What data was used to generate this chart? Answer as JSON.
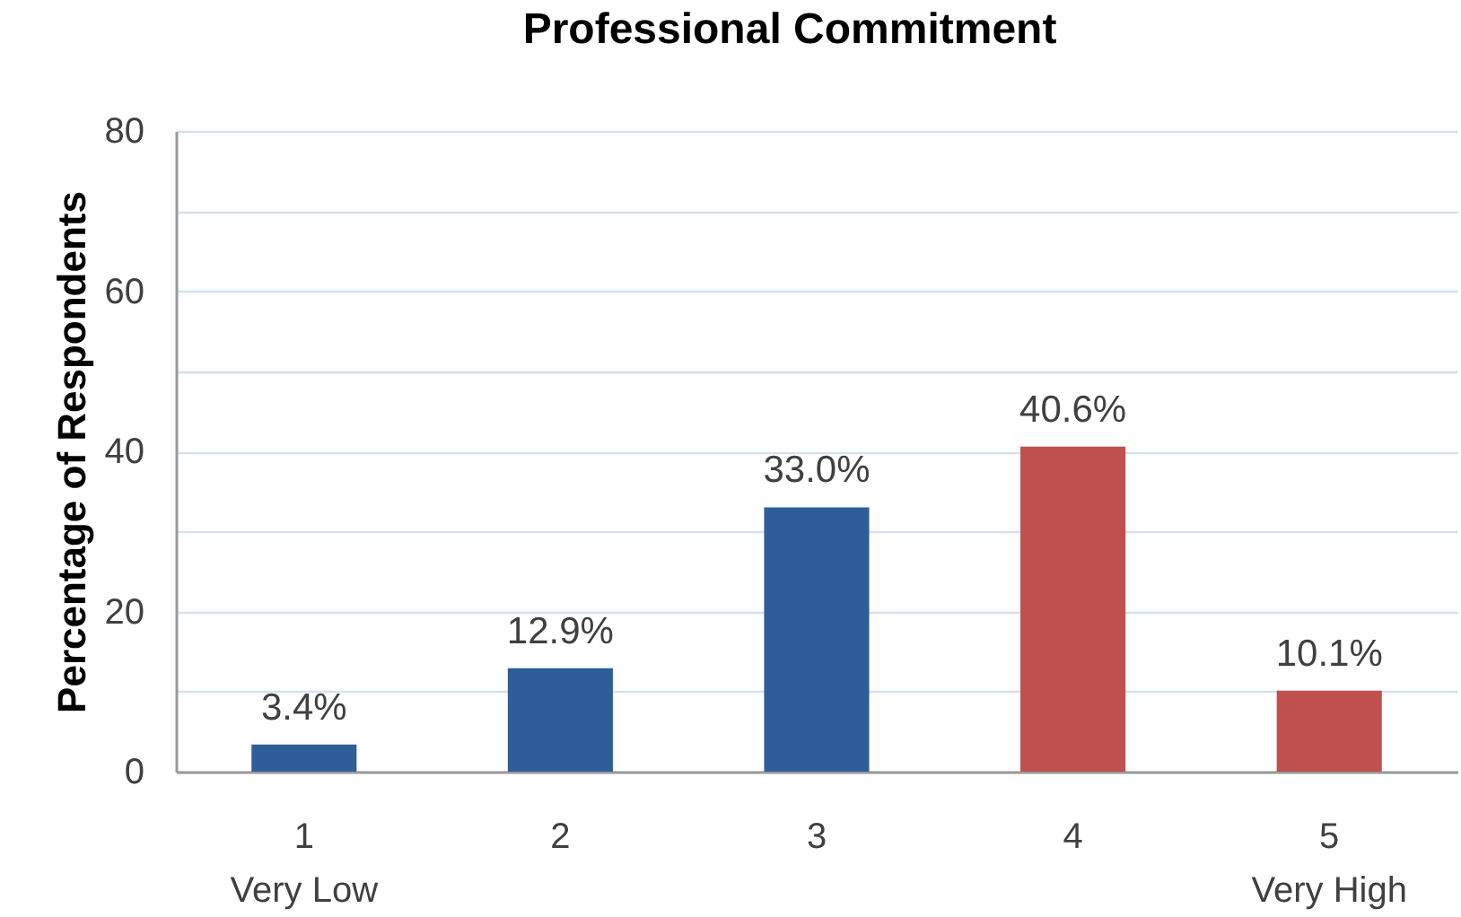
{
  "chart_data": {
    "type": "bar",
    "title": "Professional Commitment",
    "ylabel": "Percentage of Respondents",
    "categories": [
      "1\nVery Low",
      "2",
      "3",
      "4",
      "5\nVery High"
    ],
    "values": [
      3.4,
      12.9,
      33.0,
      40.6,
      10.1
    ],
    "colors": [
      "#2e5e98",
      "#2e5e98",
      "#2e5e98",
      "#c0504d",
      "#c0504d"
    ],
    "value_labels": [
      "3.4%",
      "12.9%",
      "33.0%",
      "40.6%",
      "10.1%"
    ],
    "ylim": [
      0,
      80
    ],
    "yticks": [
      0,
      {
        "value": 10,
        "label": null
      },
      20,
      {
        "value": 30,
        "label": null
      },
      40,
      {
        "value": 50,
        "label": null
      },
      60,
      {
        "value": 70,
        "label": null
      },
      80
    ],
    "grid": true
  }
}
